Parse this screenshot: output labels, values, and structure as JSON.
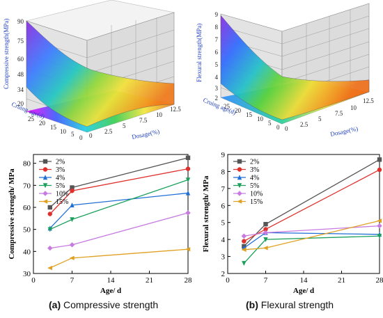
{
  "surface_a": {
    "zlabel": "Compressive strength(MPa)",
    "xlabel": "Cruing age(d)",
    "ylabel": "Dosage(%)",
    "z_ticks": [
      "90",
      "75",
      "60",
      "48",
      "34",
      "20"
    ],
    "age_ticks": [
      "25",
      "20",
      "15",
      "10",
      "5",
      "0"
    ],
    "dose_ticks": [
      "0",
      "2.5",
      "5",
      "7.5",
      "10",
      "12.5"
    ]
  },
  "surface_b": {
    "zlabel": "Flexural strength(MPa)",
    "xlabel": "Cruing age(d)",
    "ylabel": "Dosage(%)",
    "z_ticks": [
      "9",
      "8",
      "7",
      "6",
      "5",
      "4",
      "3",
      "2"
    ],
    "age_ticks": [
      "25",
      "20",
      "15",
      "10",
      "5",
      "0"
    ],
    "dose_ticks": [
      "0",
      "2.5",
      "5",
      "7.5",
      "10",
      "12.5"
    ]
  },
  "captions": {
    "a_tag": "(a)",
    "a_text": "Compressive strength",
    "b_tag": "(b)",
    "b_text": "Flexural strength"
  },
  "chart_data": [
    {
      "type": "line",
      "xlabel": "Age/ d",
      "ylabel": "Compressive strength/ MPa",
      "x": [
        3,
        7,
        28
      ],
      "xlim": [
        0,
        28
      ],
      "ylim": [
        30,
        84
      ],
      "x_ticks": [
        0,
        7,
        14,
        21,
        28
      ],
      "y_ticks": [
        30,
        40,
        50,
        60,
        70,
        80
      ],
      "legend_position": "top-left",
      "series": [
        {
          "name": "2%",
          "color": "#555555",
          "marker": "square",
          "values": [
            60.0,
            69.0,
            82.5
          ]
        },
        {
          "name": "3%",
          "color": "#e0302c",
          "marker": "circle",
          "values": [
            57.0,
            67.5,
            77.5
          ]
        },
        {
          "name": "4%",
          "color": "#1f6fd6",
          "marker": "triangle",
          "values": [
            50.5,
            61.0,
            66.5
          ]
        },
        {
          "name": "5%",
          "color": "#1aa05a",
          "marker": "tri-down",
          "values": [
            50.0,
            54.5,
            72.5
          ]
        },
        {
          "name": "10%",
          "color": "#c77ae0",
          "marker": "diamond",
          "values": [
            41.5,
            43.0,
            57.5
          ]
        },
        {
          "name": "15%",
          "color": "#e0a020",
          "marker": "tri-left",
          "values": [
            32.5,
            37.0,
            41.0
          ]
        }
      ]
    },
    {
      "type": "line",
      "xlabel": "Age/ d",
      "ylabel": "Flexural strength/ MPa",
      "x": [
        3,
        7,
        28
      ],
      "xlim": [
        0,
        28
      ],
      "ylim": [
        2,
        9
      ],
      "x_ticks": [
        0,
        7,
        14,
        21,
        28
      ],
      "y_ticks": [
        2,
        3,
        4,
        5,
        6,
        7,
        8,
        9
      ],
      "legend_position": "top-left",
      "series": [
        {
          "name": "2%",
          "color": "#555555",
          "marker": "square",
          "values": [
            3.6,
            4.9,
            8.7
          ]
        },
        {
          "name": "3%",
          "color": "#e0302c",
          "marker": "circle",
          "values": [
            3.9,
            4.6,
            8.1
          ]
        },
        {
          "name": "4%",
          "color": "#1f6fd6",
          "marker": "triangle",
          "values": [
            3.5,
            4.4,
            4.3
          ]
        },
        {
          "name": "5%",
          "color": "#1aa05a",
          "marker": "tri-down",
          "values": [
            2.6,
            4.0,
            4.2
          ]
        },
        {
          "name": "10%",
          "color": "#c77ae0",
          "marker": "diamond",
          "values": [
            4.2,
            4.4,
            4.8
          ]
        },
        {
          "name": "15%",
          "color": "#e0a020",
          "marker": "tri-left",
          "values": [
            3.4,
            3.5,
            5.1
          ]
        }
      ]
    }
  ]
}
